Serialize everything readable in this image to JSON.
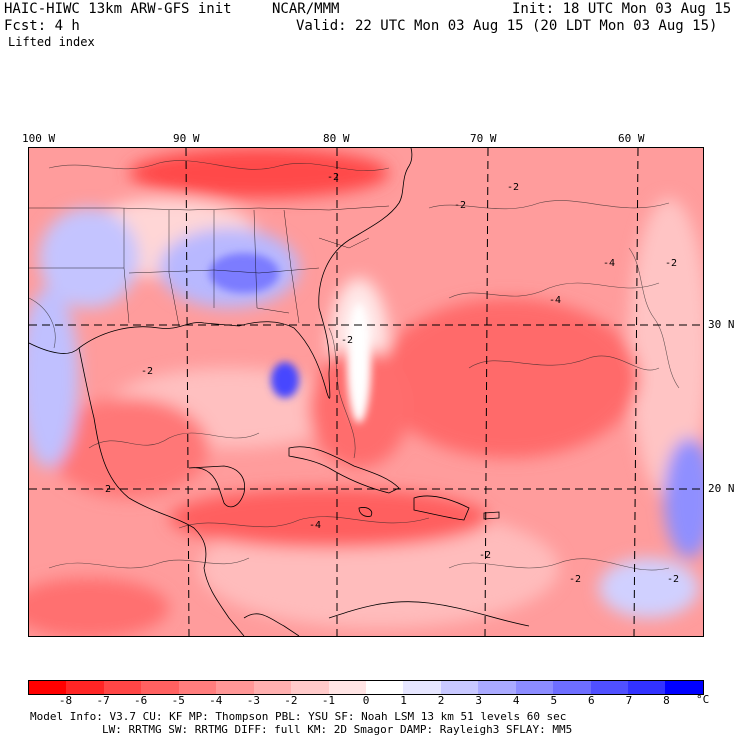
{
  "header": {
    "model": "HAIC-HIWC 13km ARW-GFS init",
    "org": "NCAR/MMM",
    "init": "Init: 18 UTC Mon 03 Aug 15",
    "fcst": "Fcst:   4 h",
    "valid": "Valid: 22 UTC Mon 03 Aug 15 (20 LDT Mon 03 Aug 15)",
    "field": "Lifted index"
  },
  "axes": {
    "lon_labels": [
      "100 W",
      "90 W",
      "80 W",
      "70 W",
      "60 W"
    ],
    "lat_labels": [
      "30 N",
      "20 N"
    ]
  },
  "contour_labels": [
    "-2",
    "-2",
    "-2",
    "-2",
    "-4",
    "-2",
    "-4",
    "-2",
    "-2",
    "-4",
    "-2",
    "-2",
    "-2"
  ],
  "colorbar": {
    "labels": [
      "-8",
      "-7",
      "-6",
      "-5",
      "-4",
      "-3",
      "-2",
      "-1",
      "0",
      "1",
      "2",
      "3",
      "4",
      "5",
      "6",
      "7",
      "8"
    ],
    "unit": "°C",
    "colors": [
      "#ff0000",
      "#ff2525",
      "#ff4646",
      "#ff6161",
      "#ff7d7d",
      "#ff9797",
      "#ffb0b0",
      "#ffcaca",
      "#ffe4e4",
      "#ffffff",
      "#e6e6ff",
      "#c8c8ff",
      "#aaaaff",
      "#8c8cff",
      "#6e6eff",
      "#5050ff",
      "#3232ff",
      "#0000ff"
    ]
  },
  "model_info": {
    "line1": "Model Info: V3.7      CU: KF      MP: Thompson     PBL: YSU       SF: Noah LSM     13 km    51 levels   60 sec",
    "line2": "LW: RRTMG     SW: RRTMG   DIFF: full    KM: 2D Smagor DAMP: Rayleigh3   SFLAY: MM5"
  }
}
